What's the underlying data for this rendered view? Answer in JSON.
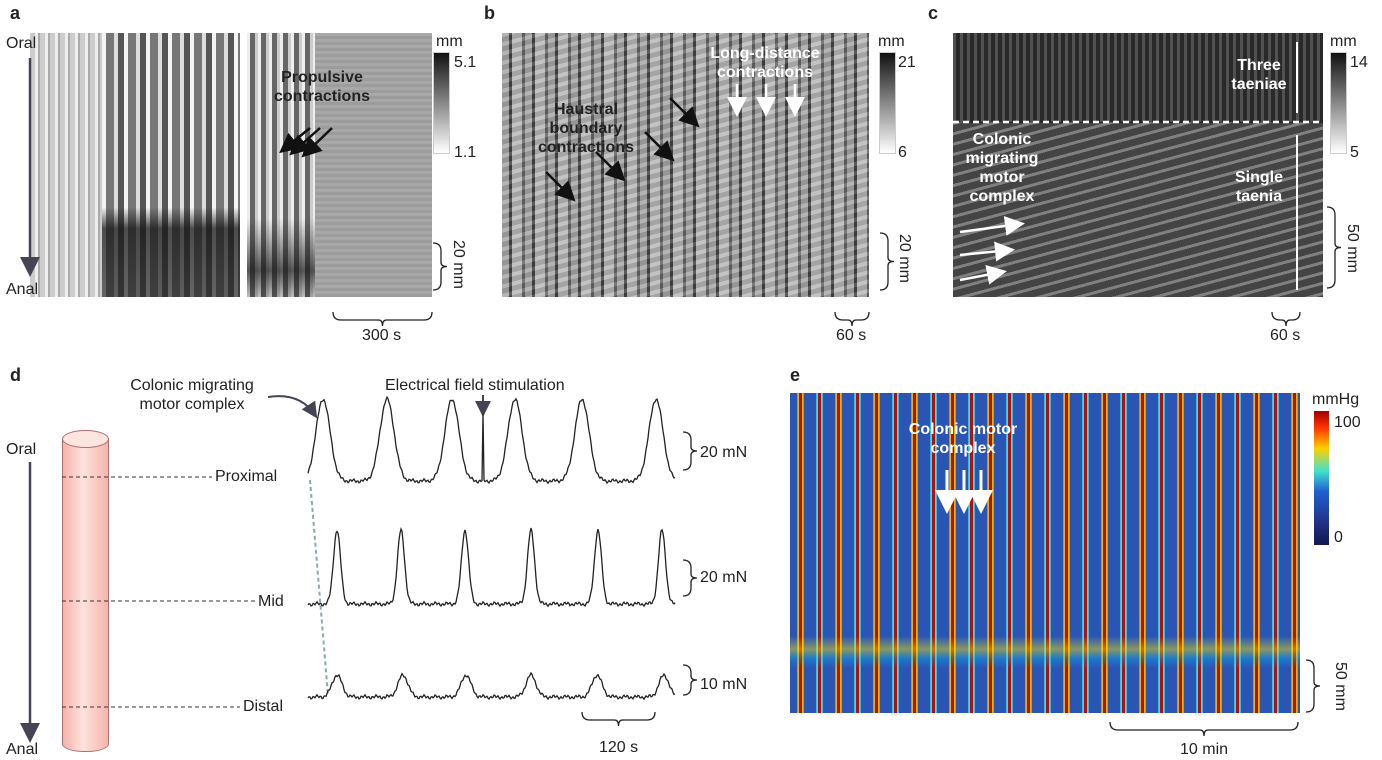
{
  "panels": {
    "a": {
      "label": "a",
      "oral": "Oral",
      "anal": "Anal",
      "annotation": "Propulsive contractions",
      "colorbar": {
        "unit": "mm",
        "max": 5.1,
        "min": 1.1
      },
      "scale_y": "20 mm",
      "scale_x": "300 s"
    },
    "b": {
      "label": "b",
      "annotations": [
        "Haustral boundary contractions",
        "Long-distance contractions"
      ],
      "colorbar": {
        "unit": "mm",
        "max": 21,
        "min": 6
      },
      "scale_y": "20 mm",
      "scale_x": "60 s"
    },
    "c": {
      "label": "c",
      "annotations": [
        "Three taeniae",
        "Colonic migrating motor complex",
        "Single taenia"
      ],
      "colorbar": {
        "unit": "mm",
        "max": 14,
        "min": 5
      },
      "scale_y": "50 mm",
      "scale_x": "60 s"
    },
    "d": {
      "label": "d",
      "oral": "Oral",
      "anal": "Anal",
      "annotations": [
        "Colonic migrating motor complex",
        "Electrical field stimulation"
      ],
      "traces": [
        {
          "site": "Proximal",
          "scale": "20 mN"
        },
        {
          "site": "Mid",
          "scale": "20 mN"
        },
        {
          "site": "Distal",
          "scale": "10 mN"
        }
      ],
      "scale_x": "120 s"
    },
    "e": {
      "label": "e",
      "annotation": "Colonic motor complex",
      "colorbar": {
        "unit": "mmHg",
        "max": 100,
        "min": 0
      },
      "scale_y": "50 mm",
      "scale_x": "10 min"
    }
  }
}
